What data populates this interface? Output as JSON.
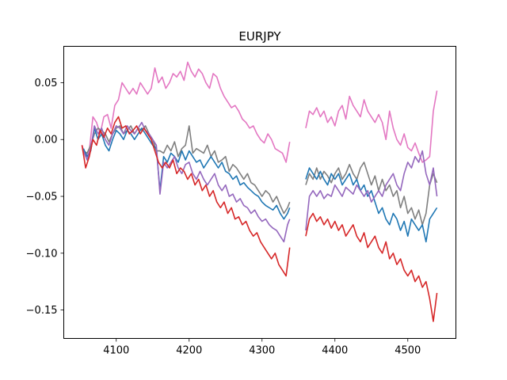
{
  "chart_data": {
    "type": "line",
    "title": "EURJPY",
    "xlabel": "",
    "ylabel": "",
    "xlim": [
      4028,
      4566
    ],
    "ylim": [
      -0.175,
      0.082
    ],
    "xticks": [
      4100,
      4200,
      4300,
      4400,
      4500
    ],
    "yticks": [
      0.05,
      0.0,
      -0.05,
      -0.1,
      -0.15
    ],
    "ytick_labels": [
      "0.05",
      "0.00",
      "−0.05",
      "−0.10",
      "−0.15"
    ],
    "grid": false,
    "gap": [
      4338,
      4360
    ],
    "series": [
      {
        "color": "#e377c2",
        "x": [
          4053,
          4058,
          4063,
          4068,
          4073,
          4078,
          4083,
          4088,
          4093,
          4098,
          4103,
          4108,
          4113,
          4118,
          4123,
          4128,
          4133,
          4138,
          4143,
          4148,
          4153,
          4158,
          4163,
          4168,
          4173,
          4178,
          4183,
          4188,
          4193,
          4198,
          4203,
          4208,
          4213,
          4218,
          4223,
          4228,
          4233,
          4238,
          4243,
          4248,
          4253,
          4258,
          4263,
          4268,
          4273,
          4278,
          4283,
          4288,
          4293,
          4298,
          4303,
          4308,
          4313,
          4318,
          4323,
          4328,
          4333,
          4338,
          4360,
          4365,
          4370,
          4375,
          4380,
          4385,
          4390,
          4395,
          4400,
          4405,
          4410,
          4415,
          4420,
          4425,
          4430,
          4435,
          4440,
          4445,
          4450,
          4455,
          4460,
          4465,
          4470,
          4475,
          4480,
          4485,
          4490,
          4495,
          4500,
          4505,
          4510,
          4515,
          4520,
          4525,
          4530,
          4535,
          4540
        ],
        "y": [
          -0.005,
          -0.015,
          -0.01,
          0.02,
          0.015,
          0.005,
          0.02,
          0.022,
          0.01,
          0.03,
          0.035,
          0.05,
          0.045,
          0.04,
          0.045,
          0.04,
          0.05,
          0.045,
          0.04,
          0.045,
          0.063,
          0.05,
          0.055,
          0.045,
          0.05,
          0.058,
          0.055,
          0.06,
          0.052,
          0.068,
          0.06,
          0.055,
          0.062,
          0.058,
          0.05,
          0.045,
          0.058,
          0.055,
          0.045,
          0.038,
          0.033,
          0.028,
          0.03,
          0.025,
          0.018,
          0.015,
          0.01,
          0.012,
          0.005,
          0.0,
          -0.003,
          0.005,
          0.0,
          -0.008,
          -0.01,
          -0.012,
          -0.02,
          -0.002,
          0.01,
          0.025,
          0.022,
          0.028,
          0.02,
          0.025,
          0.015,
          0.02,
          0.012,
          0.025,
          0.03,
          0.018,
          0.038,
          0.03,
          0.025,
          0.02,
          0.035,
          0.025,
          0.02,
          0.015,
          0.022,
          0.015,
          0.0,
          0.025,
          0.01,
          0.0,
          -0.005,
          0.005,
          -0.007,
          -0.01,
          -0.003,
          -0.012,
          -0.02,
          -0.018,
          -0.015,
          0.025,
          0.043
        ]
      },
      {
        "color": "#7f7f7f",
        "x": [
          4055,
          4060,
          4065,
          4070,
          4075,
          4080,
          4085,
          4090,
          4095,
          4100,
          4105,
          4110,
          4115,
          4120,
          4125,
          4130,
          4135,
          4140,
          4145,
          4150,
          4155,
          4160,
          4165,
          4170,
          4175,
          4180,
          4185,
          4190,
          4195,
          4200,
          4205,
          4210,
          4215,
          4220,
          4225,
          4230,
          4235,
          4240,
          4245,
          4250,
          4255,
          4260,
          4265,
          4270,
          4275,
          4280,
          4285,
          4290,
          4295,
          4300,
          4305,
          4310,
          4315,
          4320,
          4325,
          4330,
          4335,
          4338,
          4360,
          4365,
          4370,
          4375,
          4380,
          4385,
          4390,
          4395,
          4400,
          4405,
          4410,
          4415,
          4420,
          4425,
          4430,
          4435,
          4440,
          4445,
          4450,
          4455,
          4460,
          4465,
          4470,
          4475,
          4480,
          4485,
          4490,
          4495,
          4500,
          4505,
          4510,
          4515,
          4520,
          4525,
          4530,
          4535,
          4540
        ],
        "y": [
          -0.01,
          -0.012,
          -0.005,
          0.005,
          0.01,
          0.008,
          0.005,
          -0.002,
          0.005,
          0.01,
          0.012,
          0.005,
          0.008,
          0.012,
          0.005,
          0.01,
          0.008,
          0.012,
          0.005,
          0.0,
          -0.01,
          -0.01,
          -0.012,
          -0.005,
          -0.01,
          -0.002,
          -0.015,
          -0.008,
          -0.005,
          0.012,
          -0.012,
          -0.008,
          -0.01,
          -0.012,
          -0.005,
          -0.015,
          -0.01,
          -0.02,
          -0.018,
          -0.015,
          -0.028,
          -0.022,
          -0.025,
          -0.03,
          -0.035,
          -0.03,
          -0.038,
          -0.04,
          -0.045,
          -0.05,
          -0.045,
          -0.048,
          -0.055,
          -0.05,
          -0.058,
          -0.065,
          -0.06,
          -0.055,
          -0.04,
          -0.03,
          -0.035,
          -0.025,
          -0.035,
          -0.028,
          -0.032,
          -0.038,
          -0.03,
          -0.025,
          -0.035,
          -0.03,
          -0.022,
          -0.03,
          -0.035,
          -0.025,
          -0.02,
          -0.03,
          -0.04,
          -0.032,
          -0.045,
          -0.035,
          -0.045,
          -0.04,
          -0.05,
          -0.045,
          -0.06,
          -0.05,
          -0.065,
          -0.06,
          -0.07,
          -0.062,
          -0.075,
          -0.065,
          -0.04,
          -0.03,
          -0.038
        ]
      },
      {
        "color": "#1f77b4",
        "x": [
          4055,
          4060,
          4065,
          4070,
          4075,
          4080,
          4085,
          4090,
          4095,
          4100,
          4105,
          4110,
          4115,
          4120,
          4125,
          4130,
          4135,
          4140,
          4145,
          4150,
          4155,
          4160,
          4165,
          4170,
          4175,
          4180,
          4185,
          4190,
          4195,
          4200,
          4205,
          4210,
          4215,
          4220,
          4225,
          4230,
          4235,
          4240,
          4245,
          4250,
          4255,
          4260,
          4265,
          4270,
          4275,
          4280,
          4285,
          4290,
          4295,
          4300,
          4305,
          4310,
          4315,
          4320,
          4325,
          4330,
          4335,
          4338,
          4360,
          4365,
          4370,
          4375,
          4380,
          4385,
          4390,
          4395,
          4400,
          4405,
          4410,
          4415,
          4420,
          4425,
          4430,
          4435,
          4440,
          4445,
          4450,
          4455,
          4460,
          4465,
          4470,
          4475,
          4480,
          4485,
          4490,
          4495,
          4500,
          4505,
          4510,
          4515,
          4520,
          4525,
          4530,
          4535,
          4540
        ],
        "y": [
          -0.008,
          -0.015,
          -0.01,
          0.01,
          0.0,
          0.005,
          -0.005,
          -0.01,
          0.0,
          0.008,
          0.005,
          0.0,
          0.008,
          0.005,
          0.0,
          0.005,
          0.01,
          0.005,
          0.0,
          -0.005,
          -0.008,
          -0.045,
          -0.015,
          -0.02,
          -0.012,
          -0.015,
          -0.02,
          -0.01,
          -0.018,
          -0.01,
          -0.015,
          -0.02,
          -0.018,
          -0.025,
          -0.02,
          -0.015,
          -0.02,
          -0.025,
          -0.02,
          -0.028,
          -0.03,
          -0.035,
          -0.032,
          -0.04,
          -0.038,
          -0.042,
          -0.045,
          -0.048,
          -0.05,
          -0.055,
          -0.058,
          -0.06,
          -0.062,
          -0.058,
          -0.065,
          -0.07,
          -0.065,
          -0.06,
          -0.035,
          -0.025,
          -0.03,
          -0.035,
          -0.028,
          -0.035,
          -0.04,
          -0.03,
          -0.035,
          -0.03,
          -0.04,
          -0.035,
          -0.03,
          -0.04,
          -0.035,
          -0.045,
          -0.04,
          -0.05,
          -0.045,
          -0.055,
          -0.065,
          -0.06,
          -0.07,
          -0.075,
          -0.065,
          -0.07,
          -0.08,
          -0.072,
          -0.085,
          -0.07,
          -0.075,
          -0.08,
          -0.075,
          -0.09,
          -0.07,
          -0.065,
          -0.06
        ]
      },
      {
        "color": "#9467bd",
        "x": [
          4055,
          4060,
          4065,
          4070,
          4075,
          4080,
          4085,
          4090,
          4095,
          4100,
          4105,
          4110,
          4115,
          4120,
          4125,
          4130,
          4135,
          4140,
          4145,
          4150,
          4155,
          4160,
          4165,
          4170,
          4175,
          4180,
          4185,
          4190,
          4195,
          4200,
          4205,
          4210,
          4215,
          4220,
          4225,
          4230,
          4235,
          4240,
          4245,
          4250,
          4255,
          4260,
          4265,
          4270,
          4275,
          4280,
          4285,
          4290,
          4295,
          4300,
          4305,
          4310,
          4315,
          4320,
          4325,
          4330,
          4335,
          4338,
          4360,
          4365,
          4370,
          4375,
          4380,
          4385,
          4390,
          4395,
          4400,
          4405,
          4410,
          4415,
          4420,
          4425,
          4430,
          4435,
          4440,
          4445,
          4450,
          4455,
          4460,
          4465,
          4470,
          4475,
          4480,
          4485,
          4490,
          4495,
          4500,
          4505,
          4510,
          4515,
          4520,
          4525,
          4530,
          4535,
          4540
        ],
        "y": [
          -0.01,
          -0.018,
          -0.008,
          0.012,
          0.005,
          0.01,
          0.0,
          -0.005,
          0.005,
          0.012,
          0.01,
          0.005,
          0.012,
          0.008,
          0.005,
          0.01,
          0.015,
          0.008,
          0.005,
          0.0,
          -0.005,
          -0.048,
          -0.02,
          -0.025,
          -0.02,
          -0.015,
          -0.025,
          -0.03,
          -0.022,
          -0.02,
          -0.03,
          -0.035,
          -0.028,
          -0.035,
          -0.04,
          -0.035,
          -0.03,
          -0.04,
          -0.045,
          -0.04,
          -0.05,
          -0.048,
          -0.055,
          -0.052,
          -0.058,
          -0.06,
          -0.065,
          -0.062,
          -0.068,
          -0.072,
          -0.07,
          -0.075,
          -0.078,
          -0.08,
          -0.085,
          -0.09,
          -0.075,
          -0.07,
          -0.08,
          -0.05,
          -0.045,
          -0.05,
          -0.045,
          -0.052,
          -0.048,
          -0.05,
          -0.04,
          -0.045,
          -0.05,
          -0.042,
          -0.045,
          -0.048,
          -0.04,
          -0.045,
          -0.05,
          -0.045,
          -0.055,
          -0.05,
          -0.045,
          -0.05,
          -0.04,
          -0.035,
          -0.03,
          -0.04,
          -0.045,
          -0.03,
          -0.02,
          -0.025,
          -0.015,
          -0.02,
          -0.01,
          -0.03,
          -0.04,
          -0.025,
          -0.05
        ]
      },
      {
        "color": "#d62728",
        "x": [
          4053,
          4058,
          4063,
          4068,
          4073,
          4078,
          4083,
          4088,
          4093,
          4098,
          4103,
          4108,
          4113,
          4118,
          4123,
          4128,
          4133,
          4138,
          4143,
          4148,
          4153,
          4158,
          4163,
          4168,
          4173,
          4178,
          4183,
          4188,
          4193,
          4198,
          4203,
          4208,
          4213,
          4218,
          4223,
          4228,
          4233,
          4238,
          4243,
          4248,
          4253,
          4258,
          4263,
          4268,
          4273,
          4278,
          4283,
          4288,
          4293,
          4298,
          4303,
          4308,
          4313,
          4318,
          4323,
          4328,
          4333,
          4338,
          4360,
          4365,
          4370,
          4375,
          4380,
          4385,
          4390,
          4395,
          4400,
          4405,
          4410,
          4415,
          4420,
          4425,
          4430,
          4435,
          4440,
          4445,
          4450,
          4455,
          4460,
          4465,
          4470,
          4475,
          4480,
          4485,
          4490,
          4495,
          4500,
          4505,
          4510,
          4515,
          4520,
          4525,
          4530,
          4535,
          4540
        ],
        "y": [
          -0.005,
          -0.025,
          -0.015,
          0.0,
          -0.005,
          0.008,
          0.002,
          0.01,
          0.005,
          0.015,
          0.02,
          0.01,
          0.012,
          0.005,
          0.008,
          0.012,
          0.005,
          0.01,
          0.005,
          0.0,
          -0.01,
          -0.02,
          -0.025,
          -0.02,
          -0.025,
          -0.018,
          -0.03,
          -0.025,
          -0.028,
          -0.035,
          -0.03,
          -0.04,
          -0.035,
          -0.045,
          -0.04,
          -0.05,
          -0.045,
          -0.055,
          -0.06,
          -0.055,
          -0.065,
          -0.06,
          -0.07,
          -0.068,
          -0.075,
          -0.072,
          -0.08,
          -0.085,
          -0.082,
          -0.09,
          -0.095,
          -0.1,
          -0.105,
          -0.1,
          -0.11,
          -0.115,
          -0.12,
          -0.095,
          -0.085,
          -0.07,
          -0.065,
          -0.072,
          -0.068,
          -0.075,
          -0.07,
          -0.078,
          -0.072,
          -0.08,
          -0.075,
          -0.085,
          -0.08,
          -0.075,
          -0.085,
          -0.09,
          -0.082,
          -0.095,
          -0.09,
          -0.085,
          -0.095,
          -0.1,
          -0.09,
          -0.105,
          -0.1,
          -0.11,
          -0.105,
          -0.115,
          -0.12,
          -0.115,
          -0.125,
          -0.12,
          -0.13,
          -0.125,
          -0.14,
          -0.16,
          -0.135
        ]
      }
    ]
  }
}
